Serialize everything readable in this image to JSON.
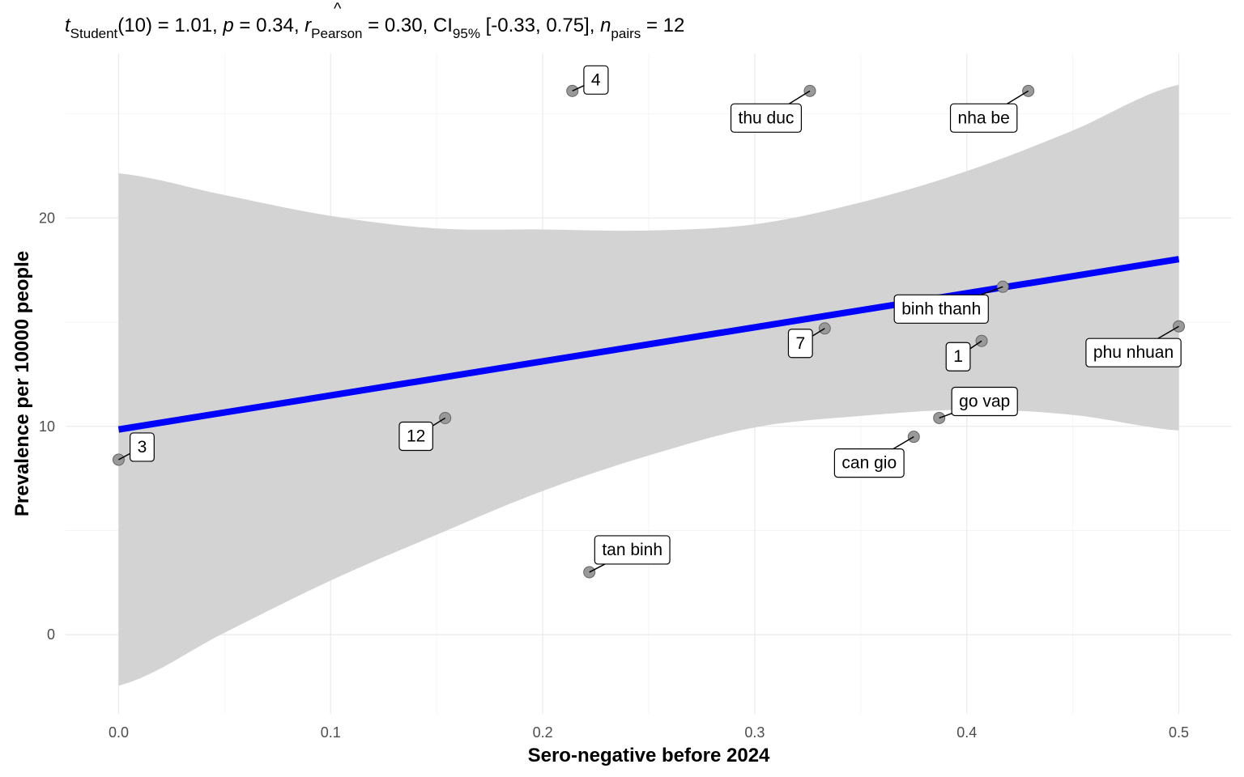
{
  "chart_data": {
    "type": "scatter",
    "subtitle_parts": {
      "t_label": "t",
      "t_sub": "Student",
      "df": "(10)",
      "t_value": "1.01",
      "p_label": "p",
      "p_value": "0.34",
      "r_label": "r",
      "r_hat": "^",
      "r_sub": "Pearson",
      "r_value": "0.30",
      "ci_label": "CI",
      "ci_sub": "95%",
      "ci_value": "[-0.33, 0.75]",
      "n_label": "n",
      "n_sub": "pairs",
      "n_value": "12"
    },
    "xlabel": "Sero-negative before 2024",
    "ylabel": "Prevalence per 10000 people",
    "xlim": [
      -0.025,
      0.525
    ],
    "ylim": [
      -3.8,
      27.9
    ],
    "x_ticks": [
      0.0,
      0.1,
      0.2,
      0.3,
      0.4,
      0.5
    ],
    "x_tick_labels": [
      "0.0",
      "0.1",
      "0.2",
      "0.3",
      "0.4",
      "0.5"
    ],
    "y_ticks": [
      0,
      10,
      20
    ],
    "y_tick_labels": [
      "0",
      "10",
      "20"
    ],
    "grid": true,
    "points": [
      {
        "label": "4",
        "x": 0.214,
        "y": 26.1
      },
      {
        "label": "thu duc",
        "x": 0.326,
        "y": 26.1
      },
      {
        "label": "nha be",
        "x": 0.429,
        "y": 26.1
      },
      {
        "label": "binh thanh",
        "x": 0.417,
        "y": 16.7
      },
      {
        "label": "7",
        "x": 0.333,
        "y": 14.7
      },
      {
        "label": "1",
        "x": 0.407,
        "y": 14.1
      },
      {
        "label": "phu nhuan",
        "x": 0.5,
        "y": 14.8
      },
      {
        "label": "go vap",
        "x": 0.387,
        "y": 10.4
      },
      {
        "label": "12",
        "x": 0.154,
        "y": 10.4
      },
      {
        "label": "can gio",
        "x": 0.375,
        "y": 9.5
      },
      {
        "label": "3",
        "x": 0.0,
        "y": 8.4
      },
      {
        "label": "tan binh",
        "x": 0.222,
        "y": 3.0
      }
    ],
    "fit_line": {
      "intercept": 9.85,
      "slope": 16.35
    },
    "confidence_band": {
      "x": [
        0.0,
        0.05,
        0.1,
        0.15,
        0.2,
        0.25,
        0.3,
        0.35,
        0.4,
        0.45,
        0.5
      ],
      "lower": [
        -2.45,
        0.1,
        2.6,
        4.8,
        6.9,
        8.6,
        9.95,
        10.5,
        10.8,
        10.55,
        9.8
      ],
      "upper": [
        22.15,
        21.1,
        20.1,
        19.5,
        19.45,
        19.4,
        19.7,
        20.75,
        22.25,
        24.2,
        26.4
      ]
    },
    "colors": {
      "fit_line": "#0000ff",
      "band": "#d3d3d3",
      "point_fill": "#999999",
      "point_stroke": "#666666",
      "grid_major": "#ebebeb",
      "grid_minor": "#f4f4f4"
    }
  }
}
